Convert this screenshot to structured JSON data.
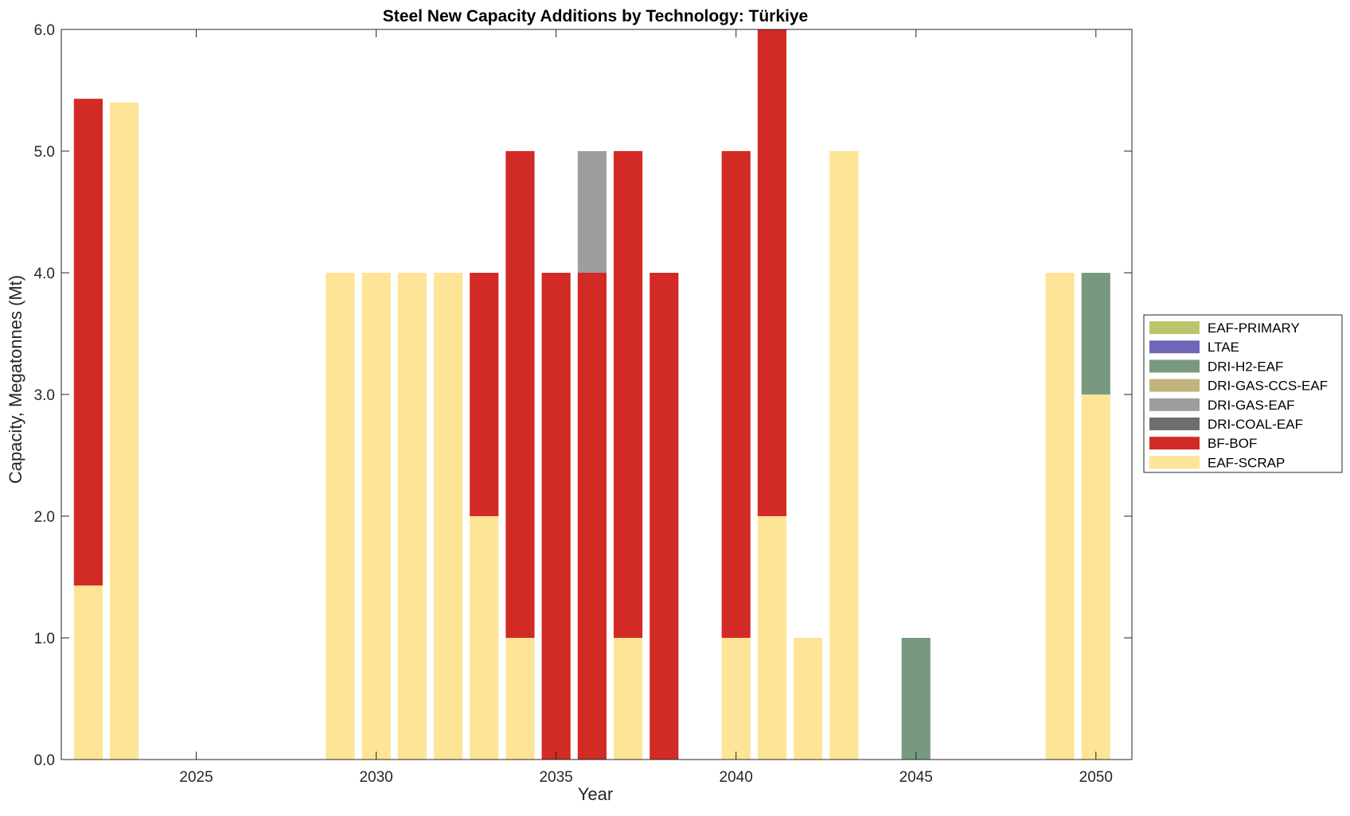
{
  "chart_data": {
    "type": "bar",
    "stacked": true,
    "title": "Steel New Capacity Additions by Technology: Türkiye",
    "xlabel": "Year",
    "ylabel": "Capacity, Megatonnes (Mt)",
    "xlim": [
      2021.25,
      2051
    ],
    "ylim": [
      0,
      6
    ],
    "xticks": [
      2025,
      2030,
      2035,
      2040,
      2045,
      2050
    ],
    "xtick_labels": [
      "2025",
      "2030",
      "2035",
      "2040",
      "2045",
      "2050"
    ],
    "yticks": [
      0,
      1,
      2,
      3,
      4,
      5,
      6
    ],
    "ytick_labels": [
      "0.0",
      "1.0",
      "2.0",
      "3.0",
      "4.0",
      "5.0",
      "6.0"
    ],
    "grid": false,
    "legend_position": "outside-right",
    "categories": [
      2022,
      2023,
      2024,
      2025,
      2026,
      2027,
      2028,
      2029,
      2030,
      2031,
      2032,
      2033,
      2034,
      2035,
      2036,
      2037,
      2038,
      2039,
      2040,
      2041,
      2042,
      2043,
      2044,
      2045,
      2046,
      2047,
      2048,
      2049,
      2050
    ],
    "series": [
      {
        "name": "EAF-SCRAP",
        "color": "#fee496",
        "values": [
          1.43,
          5.4,
          0,
          0,
          0,
          0,
          0,
          4,
          4,
          4,
          4,
          2,
          1,
          0,
          0,
          1,
          0,
          0,
          1,
          2,
          1,
          5,
          0,
          0,
          0,
          0,
          0,
          4,
          3
        ]
      },
      {
        "name": "BF-BOF",
        "color": "#d22a25",
        "values": [
          4.0,
          0,
          0,
          0,
          0,
          0,
          0,
          0,
          0,
          0,
          0,
          2,
          4,
          4,
          4,
          4,
          4,
          0,
          4,
          4,
          0,
          0,
          0,
          0,
          0,
          0,
          0,
          0,
          0
        ]
      },
      {
        "name": "DRI-COAL-EAF",
        "color": "#6e6e6e",
        "values": [
          0,
          0,
          0,
          0,
          0,
          0,
          0,
          0,
          0,
          0,
          0,
          0,
          0,
          0,
          0,
          0,
          0,
          0,
          0,
          0,
          0,
          0,
          0,
          0,
          0,
          0,
          0,
          0,
          0
        ]
      },
      {
        "name": "DRI-GAS-EAF",
        "color": "#9e9e9e",
        "values": [
          0,
          0,
          0,
          0,
          0,
          0,
          0,
          0,
          0,
          0,
          0,
          0,
          0,
          0,
          1,
          0,
          0,
          0,
          0,
          0,
          0,
          0,
          0,
          0,
          0,
          0,
          0,
          0,
          0
        ]
      },
      {
        "name": "DRI-GAS-CCS-EAF",
        "color": "#c0b67c",
        "values": [
          0,
          0,
          0,
          0,
          0,
          0,
          0,
          0,
          0,
          0,
          0,
          0,
          0,
          0,
          0,
          0,
          0,
          0,
          0,
          0,
          0,
          0,
          0,
          0,
          0,
          0,
          0,
          0,
          0
        ]
      },
      {
        "name": "DRI-H2-EAF",
        "color": "#779a7f",
        "values": [
          0,
          0,
          0,
          0,
          0,
          0,
          0,
          0,
          0,
          0,
          0,
          0,
          0,
          0,
          0,
          0,
          0,
          0,
          0,
          0,
          0,
          0,
          0,
          1,
          0,
          0,
          0,
          0,
          1
        ]
      },
      {
        "name": "LTAE",
        "color": "#6e67b8",
        "values": [
          0,
          0,
          0,
          0,
          0,
          0,
          0,
          0,
          0,
          0,
          0,
          0,
          0,
          0,
          0,
          0,
          0,
          0,
          0,
          0,
          0,
          0,
          0,
          0,
          0,
          0,
          0,
          0,
          0
        ]
      },
      {
        "name": "EAF-PRIMARY",
        "color": "#bcc46b",
        "values": [
          0,
          0,
          0,
          0,
          0,
          0,
          0,
          0,
          0,
          0,
          0,
          0,
          0,
          0,
          0,
          0,
          0,
          0,
          0,
          0,
          0,
          0,
          0,
          0,
          0,
          0,
          0,
          0,
          0
        ]
      }
    ],
    "legend_order": [
      "EAF-PRIMARY",
      "LTAE",
      "DRI-H2-EAF",
      "DRI-GAS-CCS-EAF",
      "DRI-GAS-EAF",
      "DRI-COAL-EAF",
      "BF-BOF",
      "EAF-SCRAP"
    ]
  }
}
